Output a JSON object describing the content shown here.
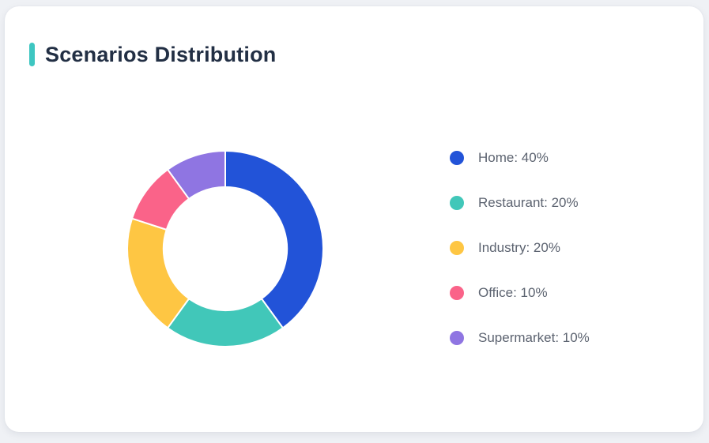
{
  "page": {
    "background": "#eff1f5"
  },
  "card": {
    "title": "Scenarios Distribution",
    "background": "#ffffff",
    "accent_color": "#3ec6c1",
    "title_color": "#222f44"
  },
  "legend": {
    "text_color": "#5c6370"
  },
  "chart_data": {
    "type": "pie",
    "subtype": "donut",
    "title": "Scenarios Distribution",
    "start_angle": "top",
    "direction": "clockwise",
    "inner_radius_ratio": 0.63,
    "legend_position": "right",
    "unit": "%",
    "categories": [
      "Home",
      "Restaurant",
      "Industry",
      "Office",
      "Supermarket"
    ],
    "values": [
      40,
      20,
      20,
      10,
      10
    ],
    "segments": [
      {
        "label": "Home",
        "value": 40,
        "color": "#2253d8",
        "legend_text": "Home: 40%"
      },
      {
        "label": "Restaurant",
        "value": 20,
        "color": "#41c7b9",
        "legend_text": "Restaurant: 20%"
      },
      {
        "label": "Industry",
        "value": 20,
        "color": "#fec643",
        "legend_text": "Industry: 20%"
      },
      {
        "label": "Office",
        "value": 10,
        "color": "#fa6389",
        "legend_text": "Office: 10%"
      },
      {
        "label": "Supermarket",
        "value": 10,
        "color": "#8f75e2",
        "legend_text": "Supermarket: 10%"
      }
    ]
  }
}
